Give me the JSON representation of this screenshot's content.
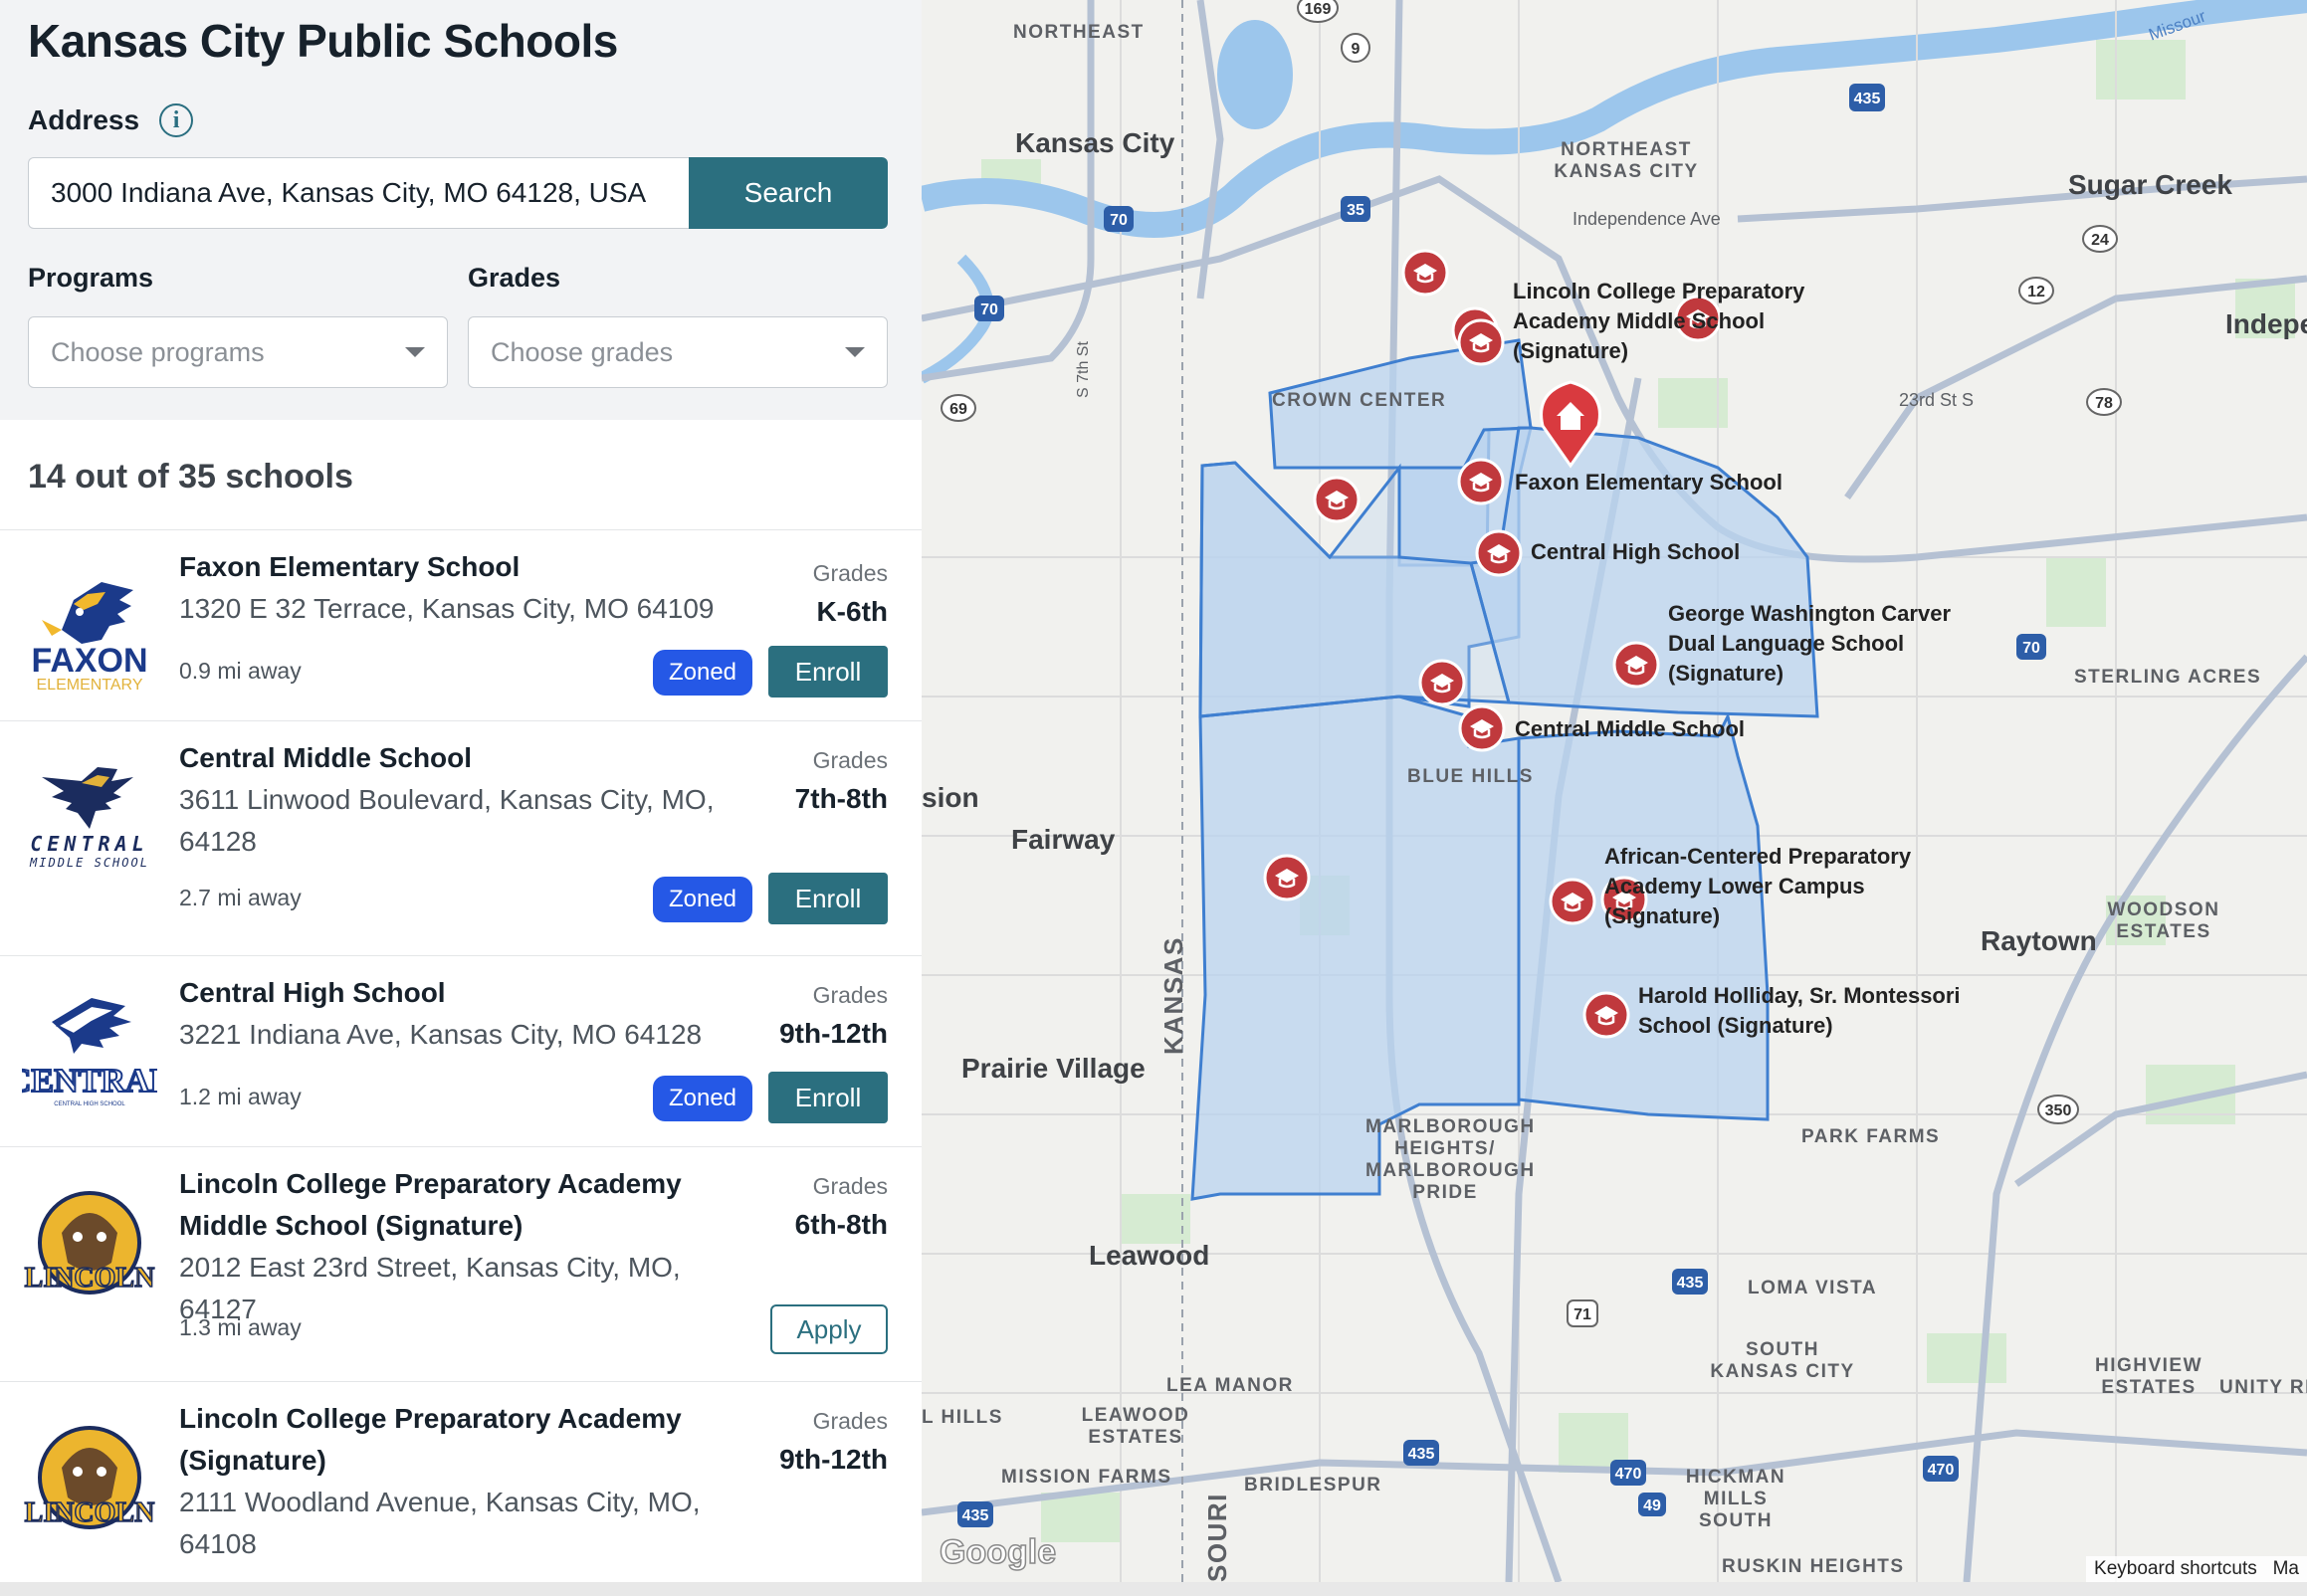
{
  "app_title": "Kansas City Public Schools",
  "address": {
    "label": "Address",
    "info_icon": "i",
    "value": "3000 Indiana Ave, Kansas City, MO 64128, USA",
    "search_label": "Search"
  },
  "filters": {
    "programs_label": "Programs",
    "programs_placeholder": "Choose programs",
    "grades_label": "Grades",
    "grades_placeholder": "Choose grades"
  },
  "results_count": "14 out of 35 schools",
  "grades_heading": "Grades",
  "schools": [
    {
      "name": "Faxon Elementary School",
      "address": "1320 E 32 Terrace, Kansas City, MO 64109",
      "distance": "0.9 mi away",
      "grades": "K-6th",
      "zoned": "Zoned",
      "action": "Enroll",
      "logo_text": "FAXON",
      "logo_sub": "ELEMENTARY"
    },
    {
      "name": "Central Middle School",
      "address": "3611 Linwood Boulevard, Kansas City, MO, 64128",
      "distance": "2.7 mi away",
      "grades": "7th-8th",
      "zoned": "Zoned",
      "action": "Enroll",
      "logo_text": "CENTRAL",
      "logo_sub": "MIDDLE SCHOOL"
    },
    {
      "name": "Central High School",
      "address": "3221 Indiana Ave, Kansas City, MO 64128",
      "distance": "1.2 mi away",
      "grades": "9th-12th",
      "zoned": "Zoned",
      "action": "Enroll",
      "logo_text": "CENTRAL",
      "logo_sub": "CENTRAL HIGH SCHOOL"
    },
    {
      "name": "Lincoln College Preparatory Academy Middle School (Signature)",
      "address": "2012 East 23rd Street, Kansas City, MO, 64127",
      "distance": "1.3 mi away",
      "grades": "6th-8th",
      "action": "Apply",
      "logo_text": "LINCOLN"
    },
    {
      "name": "Lincoln College Preparatory Academy (Signature)",
      "address": "2111 Woodland Avenue, Kansas City, MO, 64108",
      "grades": "9th-12th",
      "logo_text": "LINCOLN"
    }
  ],
  "map": {
    "area_labels": [
      "NORTHEAST",
      "NORTHEAST KANSAS CITY",
      "CROWN CENTER",
      "BLUE HILLS",
      "STERLING ACRES",
      "WOODSON ESTATES",
      "PARK FARMS",
      "MARLBOROUGH HEIGHTS/ MARLBOROUGH PRIDE",
      "LOMA VISTA",
      "SOUTH KANSAS CITY",
      "LEA MANOR",
      "LEAWOOD ESTATES",
      "MISSION FARMS",
      "BRIDLESPUR",
      "HICKMAN MILLS SOUTH",
      "RUSKIN HEIGHTS",
      "HIGHVIEW ESTATES",
      "UNITY RI",
      "L HILLS",
      "KANSAS",
      "SOURI",
      "Independence Ave",
      "23rd St S",
      "S 7th St"
    ],
    "cities": [
      "Kansas City",
      "Sugar Creek",
      "Indepe",
      "Fairway",
      "sion",
      "Raytown",
      "Prairie Village",
      "Leawood"
    ],
    "school_labels": [
      "Lincoln College Preparatory Academy Middle School (Signature)",
      "Faxon Elementary School",
      "Central High School",
      "George Washington Carver Dual Language School (Signature)",
      "Central Middle School",
      "African-Centered Preparatory Academy Lower Campus (Signature)",
      "Harold Holliday, Sr. Montessori School (Signature)"
    ],
    "school_label_lines": [
      [
        "Lincoln College Preparatory",
        "Academy Middle School",
        "(Signature)"
      ],
      [
        "Faxon Elementary School"
      ],
      [
        "Central High School"
      ],
      [
        "George Washington Carver",
        "Dual Language School",
        "(Signature)"
      ],
      [
        "Central Middle School"
      ],
      [
        "African-Centered Preparatory",
        "Academy Lower Campus",
        "(Signature)"
      ],
      [
        "Harold Holliday, Sr. Montessori",
        "School (Signature)"
      ]
    ],
    "highway_shields": [
      "169",
      "9",
      "435",
      "35",
      "70",
      "70",
      "69",
      "24",
      "12",
      "78",
      "70",
      "350",
      "71",
      "435",
      "435",
      "470",
      "470",
      "49",
      "435"
    ],
    "river_label": "Missour",
    "google": "Google",
    "footer": "Keyboard shortcuts",
    "footer_extra": "Ma"
  },
  "colors": {
    "accent": "#2b6f7f",
    "zoned": "#2558e6",
    "marker": "#c0393d",
    "zone_fill": "#b9d3ef",
    "zone_stroke": "#3f7fd0"
  }
}
